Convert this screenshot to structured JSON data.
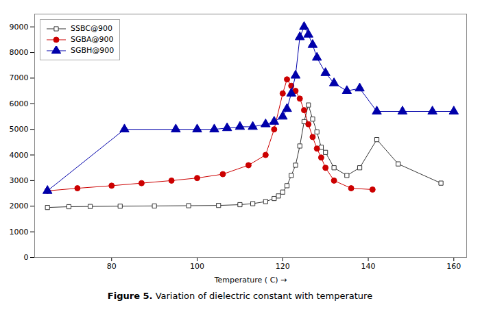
{
  "chart_data": {
    "type": "line",
    "xlabel": "Temperature ( C)",
    "xlim": [
      62,
      163
    ],
    "ylim": [
      0,
      9500
    ],
    "xticks": [
      80,
      100,
      120,
      140,
      160
    ],
    "yticks": [
      0,
      1000,
      2000,
      3000,
      4000,
      5000,
      6000,
      7000,
      8000,
      9000
    ],
    "grid": false,
    "legend": "upper left",
    "caption_label": "Figure 5.",
    "caption": "Variation of dielectric constant with temperature",
    "series": [
      {
        "name": "SSBC@900",
        "color": "#333333",
        "marker": "square-open",
        "x": [
          65,
          70,
          75,
          82,
          90,
          98,
          105,
          110,
          113,
          116,
          118,
          119,
          120,
          121,
          122,
          123,
          124,
          125,
          126,
          127,
          128,
          129,
          130,
          132,
          135,
          138,
          142,
          147,
          157
        ],
        "values": [
          1950,
          1980,
          1990,
          2000,
          2010,
          2020,
          2030,
          2060,
          2100,
          2180,
          2300,
          2400,
          2550,
          2800,
          3200,
          3600,
          4350,
          5300,
          5950,
          5400,
          4900,
          4300,
          4100,
          3500,
          3200,
          3500,
          4600,
          3650,
          2900
        ]
      },
      {
        "name": "SGBA@900",
        "color": "#cc0000",
        "marker": "circle",
        "x": [
          65,
          72,
          80,
          87,
          94,
          100,
          106,
          112,
          116,
          118,
          120,
          121,
          122,
          123,
          124,
          125,
          126,
          127,
          128,
          129,
          130,
          132,
          136,
          141
        ],
        "values": [
          2600,
          2700,
          2800,
          2900,
          3000,
          3100,
          3250,
          3600,
          4000,
          5000,
          6400,
          6950,
          6700,
          6500,
          6200,
          5750,
          5200,
          4700,
          4250,
          3900,
          3500,
          3000,
          2700,
          2650
        ]
      },
      {
        "name": "SGBH@900",
        "color": "#0000aa",
        "marker": "triangle",
        "x": [
          65,
          83,
          95,
          100,
          104,
          107,
          110,
          113,
          116,
          118,
          120,
          121,
          122,
          123,
          124,
          125,
          126,
          127,
          128,
          130,
          132,
          135,
          138,
          142,
          148,
          155,
          160
        ],
        "values": [
          2600,
          5000,
          5000,
          5000,
          5000,
          5050,
          5100,
          5100,
          5200,
          5300,
          5500,
          5800,
          6400,
          7100,
          8600,
          9000,
          8700,
          8300,
          7800,
          7200,
          6800,
          6500,
          6600,
          5700,
          5700,
          5700,
          5700
        ]
      }
    ]
  }
}
